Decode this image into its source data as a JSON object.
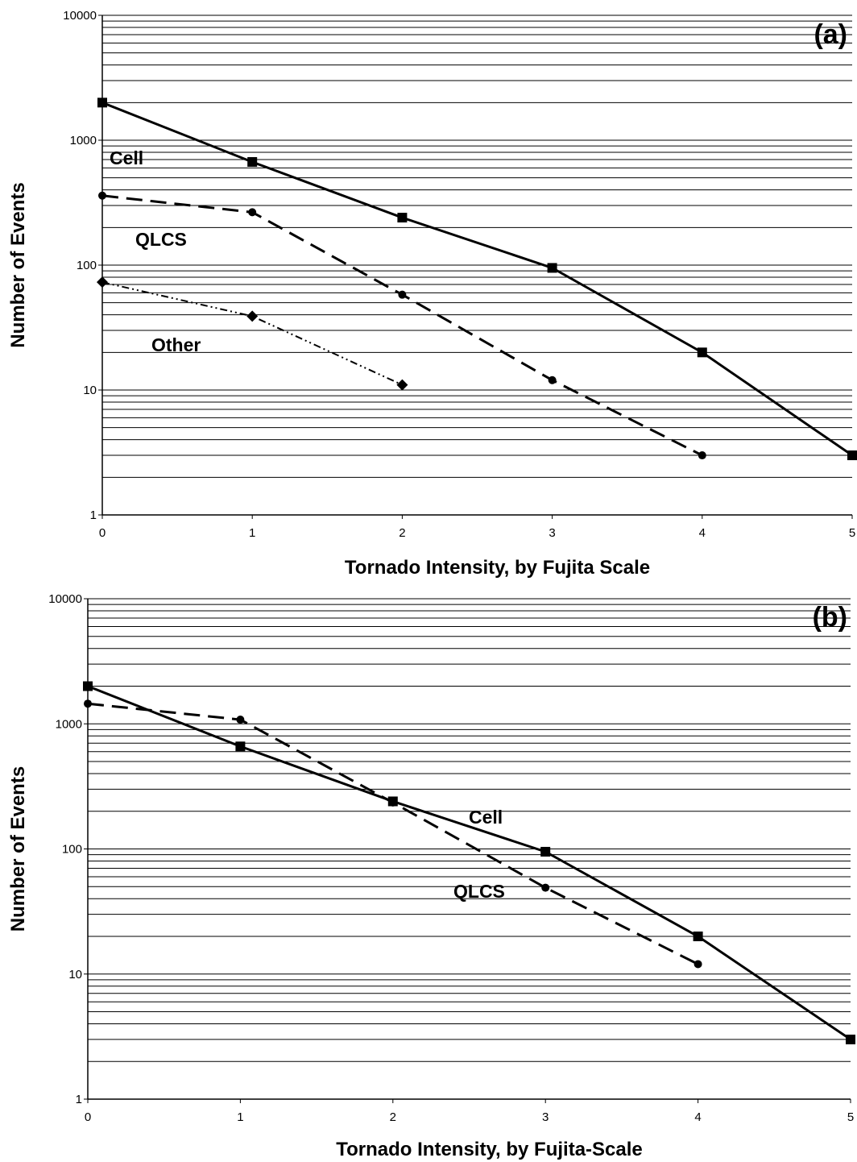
{
  "chart_data": [
    {
      "panel": "(a)",
      "type": "line",
      "xlabel": "Tornado Intensity, by Fujita Scale",
      "ylabel": "Number of Events",
      "x_ticks": [
        "0",
        "1",
        "2",
        "3",
        "4",
        "5"
      ],
      "y_ticks": [
        "1",
        "10",
        "100",
        "1000",
        "10000"
      ],
      "xlim": [
        0,
        5
      ],
      "ylim": [
        1,
        10000
      ],
      "y_scale": "log",
      "grid": "horizontal minor and major gridlines",
      "series": [
        {
          "name": "Cell",
          "style": "solid",
          "marker": "square",
          "x": [
            0,
            1,
            2,
            3,
            4,
            5
          ],
          "y": [
            2000,
            670,
            240,
            95,
            20,
            3
          ]
        },
        {
          "name": "QLCS",
          "style": "dashed",
          "marker": "circle",
          "x": [
            0,
            1,
            2,
            3,
            4
          ],
          "y": [
            360,
            265,
            58,
            12,
            3
          ]
        },
        {
          "name": "Other",
          "style": "dash-dot-dot",
          "marker": "diamond",
          "x": [
            0,
            1,
            2
          ],
          "y": [
            73,
            39,
            11
          ]
        }
      ]
    },
    {
      "panel": "(b)",
      "type": "line",
      "xlabel": "Tornado Intensity, by Fujita-Scale",
      "ylabel": "Number of Events",
      "x_ticks": [
        "0",
        "1",
        "2",
        "3",
        "4",
        "5"
      ],
      "y_ticks": [
        "1",
        "10",
        "100",
        "1000",
        "10000"
      ],
      "xlim": [
        0,
        5
      ],
      "ylim": [
        1,
        10000
      ],
      "y_scale": "log",
      "grid": "horizontal minor and major gridlines",
      "series": [
        {
          "name": "Cell",
          "style": "solid",
          "marker": "square",
          "x": [
            0,
            1,
            2,
            3,
            4,
            5
          ],
          "y": [
            2000,
            660,
            240,
            95,
            20,
            3
          ]
        },
        {
          "name": "QLCS",
          "style": "dashed",
          "marker": "circle",
          "x": [
            0,
            1,
            2,
            3,
            4
          ],
          "y": [
            1450,
            1080,
            235,
            49,
            12
          ]
        }
      ]
    }
  ]
}
